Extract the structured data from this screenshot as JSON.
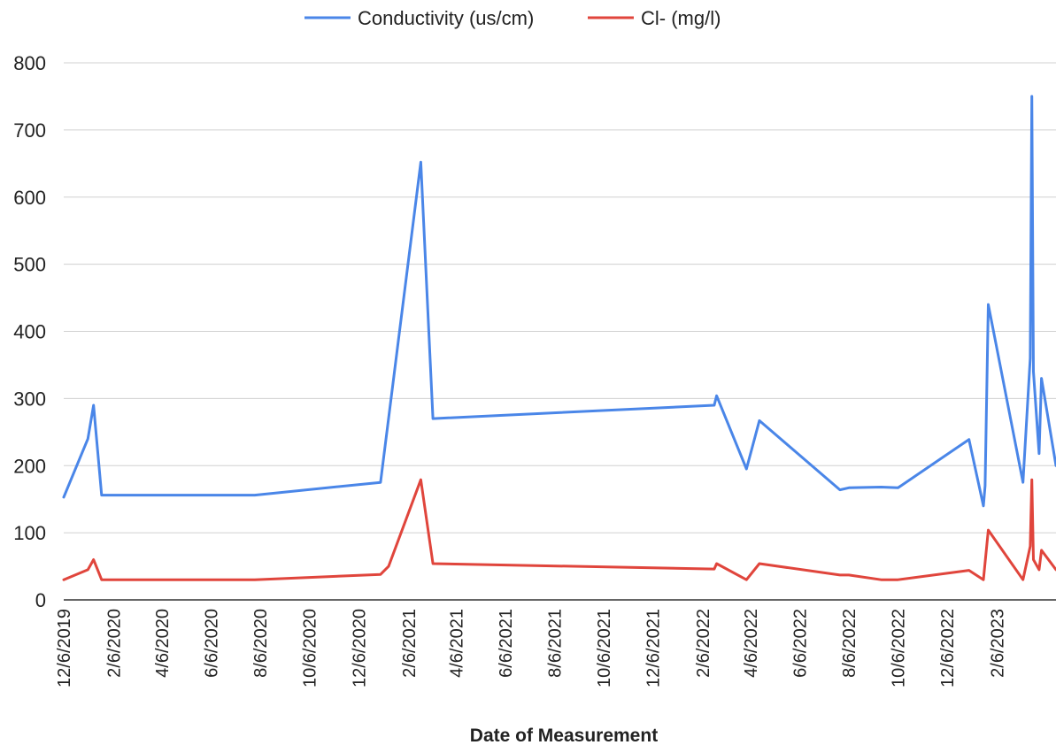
{
  "chart_data": {
    "type": "line",
    "title": "",
    "xlabel": "Date of Measurement",
    "ylabel": "",
    "ylim": [
      0,
      800
    ],
    "yticks": [
      0,
      100,
      200,
      300,
      400,
      500,
      600,
      700,
      800
    ],
    "xlim": [
      "2019-12-06",
      "2023-04-20"
    ],
    "xticks": [
      {
        "date": "2019-12-06",
        "label": "12/6/2019"
      },
      {
        "date": "2020-02-06",
        "label": "2/6/2020"
      },
      {
        "date": "2020-04-06",
        "label": "4/6/2020"
      },
      {
        "date": "2020-06-06",
        "label": "6/6/2020"
      },
      {
        "date": "2020-08-06",
        "label": "8/6/2020"
      },
      {
        "date": "2020-10-06",
        "label": "10/6/2020"
      },
      {
        "date": "2020-12-06",
        "label": "12/6/2020"
      },
      {
        "date": "2021-02-06",
        "label": "2/6/2021"
      },
      {
        "date": "2021-04-06",
        "label": "4/6/2021"
      },
      {
        "date": "2021-06-06",
        "label": "6/6/2021"
      },
      {
        "date": "2021-08-06",
        "label": "8/6/2021"
      },
      {
        "date": "2021-10-06",
        "label": "10/6/2021"
      },
      {
        "date": "2021-12-06",
        "label": "12/6/2021"
      },
      {
        "date": "2022-02-06",
        "label": "2/6/2022"
      },
      {
        "date": "2022-04-06",
        "label": "4/6/2022"
      },
      {
        "date": "2022-06-06",
        "label": "6/6/2022"
      },
      {
        "date": "2022-08-06",
        "label": "8/6/2022"
      },
      {
        "date": "2022-10-06",
        "label": "10/6/2022"
      },
      {
        "date": "2022-12-06",
        "label": "12/6/2022"
      },
      {
        "date": "2023-02-06",
        "label": "2/6/2023"
      }
    ],
    "grid": true,
    "legend_position": "top-center",
    "series": [
      {
        "name": "Conductivity (us/cm)",
        "color": "#4a86e8",
        "points": [
          [
            "2019-12-06",
            153
          ],
          [
            "2020-01-05",
            240
          ],
          [
            "2020-01-12",
            290
          ],
          [
            "2020-01-22",
            156
          ],
          [
            "2020-07-30",
            156
          ],
          [
            "2021-01-02",
            175
          ],
          [
            "2021-02-21",
            652
          ],
          [
            "2021-03-08",
            270
          ],
          [
            "2022-02-20",
            290
          ],
          [
            "2022-02-23",
            304
          ],
          [
            "2022-04-01",
            195
          ],
          [
            "2022-04-17",
            267
          ],
          [
            "2022-07-26",
            164
          ],
          [
            "2022-08-06",
            167
          ],
          [
            "2022-09-15",
            168
          ],
          [
            "2022-10-06",
            167
          ],
          [
            "2023-01-02",
            239
          ],
          [
            "2023-01-20",
            140
          ],
          [
            "2023-01-22",
            170
          ],
          [
            "2023-01-26",
            440
          ],
          [
            "2023-03-10",
            175
          ],
          [
            "2023-03-19",
            360
          ],
          [
            "2023-03-21",
            750
          ],
          [
            "2023-03-23",
            340
          ],
          [
            "2023-03-30",
            218
          ],
          [
            "2023-04-02",
            330
          ],
          [
            "2023-04-20",
            200
          ]
        ]
      },
      {
        "name": "Cl- (mg/l)",
        "color": "#e0453c",
        "points": [
          [
            "2019-12-06",
            30
          ],
          [
            "2020-01-05",
            45
          ],
          [
            "2020-01-12",
            60
          ],
          [
            "2020-01-22",
            30
          ],
          [
            "2020-07-30",
            30
          ],
          [
            "2021-01-02",
            38
          ],
          [
            "2021-01-12",
            50
          ],
          [
            "2021-02-21",
            179
          ],
          [
            "2021-03-08",
            54
          ],
          [
            "2022-02-20",
            46
          ],
          [
            "2022-02-23",
            54
          ],
          [
            "2022-04-01",
            30
          ],
          [
            "2022-04-17",
            54
          ],
          [
            "2022-07-26",
            37
          ],
          [
            "2022-08-06",
            37
          ],
          [
            "2022-09-15",
            30
          ],
          [
            "2022-10-06",
            30
          ],
          [
            "2023-01-02",
            44
          ],
          [
            "2023-01-20",
            30
          ],
          [
            "2023-01-26",
            104
          ],
          [
            "2023-03-10",
            30
          ],
          [
            "2023-03-19",
            80
          ],
          [
            "2023-03-21",
            179
          ],
          [
            "2023-03-23",
            60
          ],
          [
            "2023-03-30",
            45
          ],
          [
            "2023-04-02",
            74
          ],
          [
            "2023-04-20",
            45
          ]
        ]
      }
    ]
  }
}
